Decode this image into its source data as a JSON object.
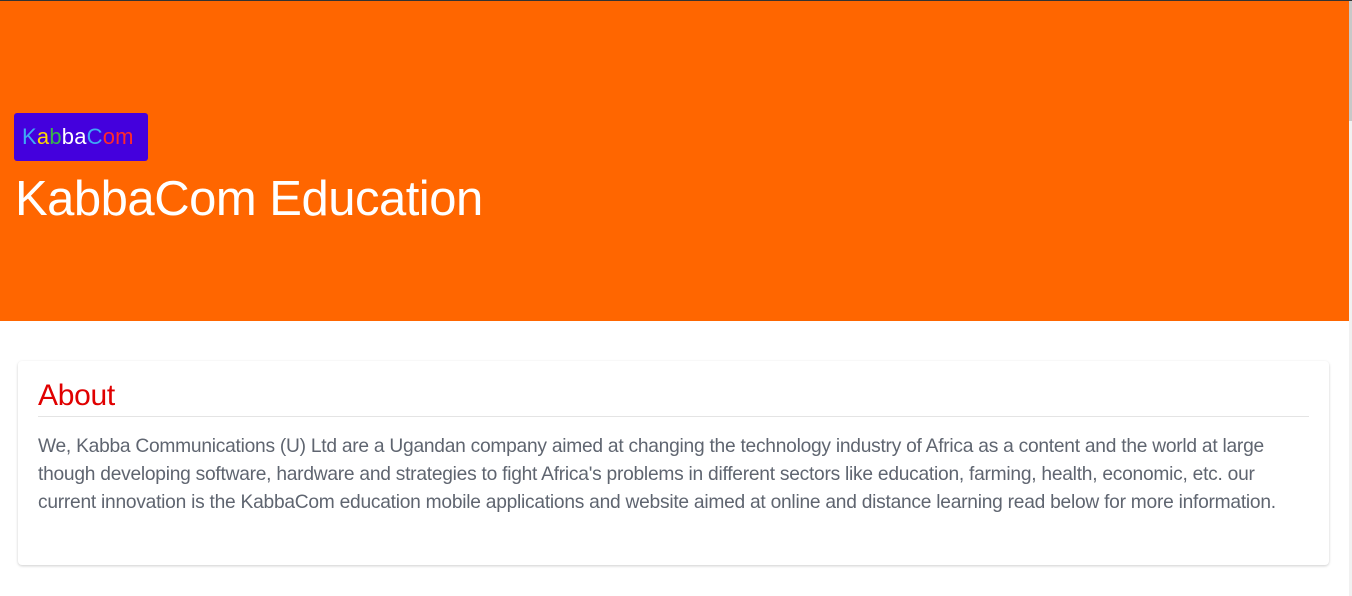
{
  "header": {
    "logo_letters": [
      {
        "char": "K",
        "color": "#3fa9f5"
      },
      {
        "char": "a",
        "color": "#ffd700"
      },
      {
        "char": "b",
        "color": "#3bb44a"
      },
      {
        "char": "b",
        "color": "#ffffff"
      },
      {
        "char": "a",
        "color": "#ffffff"
      },
      {
        "char": "C",
        "color": "#3fa9f5"
      },
      {
        "char": "o",
        "color": "#ff2a2a"
      },
      {
        "char": "m",
        "color": "#ff2a2a"
      }
    ],
    "title": "KabbaCom Education",
    "background_color": "#ff6600",
    "logo_background_color": "#4400dd"
  },
  "about": {
    "heading": "About",
    "heading_color": "#e00000",
    "body": "We, Kabba Communications (U) Ltd are a Ugandan company aimed at changing the technology industry of Africa as a content and the world at large though developing software, hardware and strategies to fight Africa's problems in different sectors like education, farming, health, economic, etc. our current innovation is the KabbaCom education mobile applications and website aimed at online and distance learning read below for more information."
  }
}
